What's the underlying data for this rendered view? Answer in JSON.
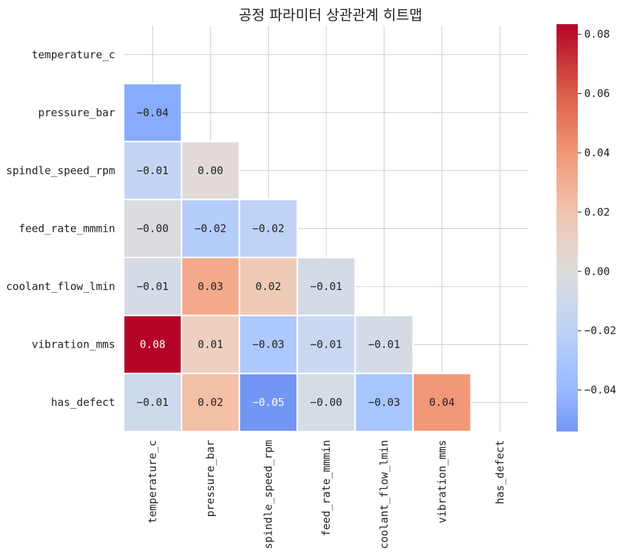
{
  "chart_data": {
    "type": "heatmap",
    "title": "공정 파라미터 상관관계 히트맵",
    "labels": [
      "temperature_c",
      "pressure_bar",
      "spindle_speed_rpm",
      "feed_rate_mmmin",
      "coolant_flow_lmin",
      "vibration_mms",
      "has_defect"
    ],
    "mask": "upper-triangle-including-diagonal",
    "cells": [
      [],
      [
        {
          "v": "-0.04",
          "c": "#88abfd"
        }
      ],
      [
        {
          "v": "-0.01",
          "c": "#c4d5f3"
        },
        {
          "v": "0.00",
          "c": "#e1dad6"
        }
      ],
      [
        {
          "v": "-0.00",
          "c": "#dadce0"
        },
        {
          "v": "-0.02",
          "c": "#b5cdfa"
        },
        {
          "v": "-0.02",
          "c": "#bfd3f6"
        }
      ],
      [
        {
          "v": "-0.01",
          "c": "#d4dbe6"
        },
        {
          "v": "0.03",
          "c": "#f5a98b"
        },
        {
          "v": "0.02",
          "c": "#efcab6"
        },
        {
          "v": "-0.01",
          "c": "#d4dbe6"
        }
      ],
      [
        {
          "v": "0.08",
          "c": "#b40426",
          "light": true
        },
        {
          "v": "0.01",
          "c": "#edcfbf"
        },
        {
          "v": "-0.03",
          "c": "#adc9fd"
        },
        {
          "v": "-0.01",
          "c": "#c9d7f0"
        },
        {
          "v": "-0.01",
          "c": "#d4dbe6"
        }
      ],
      [
        {
          "v": "-0.01",
          "c": "#cdd9ec"
        },
        {
          "v": "0.02",
          "c": "#f3bfa5"
        },
        {
          "v": "-0.05",
          "c": "#7396f5",
          "light": true
        },
        {
          "v": "-0.00",
          "c": "#d6dce4"
        },
        {
          "v": "-0.03",
          "c": "#a7c5fe"
        },
        {
          "v": "0.04",
          "c": "#f29778"
        }
      ]
    ],
    "colorbar": {
      "colormap": "coolwarm",
      "range": [
        -0.054,
        0.0834
      ],
      "ticks": [
        -0.04,
        -0.02,
        0.0,
        0.02,
        0.04,
        0.06,
        0.08
      ],
      "tick_labels": [
        "−0.04",
        "−0.02",
        "0.00",
        "0.02",
        "0.04",
        "0.06",
        "0.08"
      ],
      "stops": [
        {
          "v": 0.0834,
          "c": "#b40426"
        },
        {
          "v": 0.06,
          "c": "#dc5d4a"
        },
        {
          "v": 0.04,
          "c": "#f29778"
        },
        {
          "v": 0.02,
          "c": "#f1c4ad"
        },
        {
          "v": 0.0,
          "c": "#dddcdc"
        },
        {
          "v": -0.02,
          "c": "#bcd2f7"
        },
        {
          "v": -0.04,
          "c": "#98b9ff"
        },
        {
          "v": -0.054,
          "c": "#7396f5"
        }
      ]
    }
  }
}
